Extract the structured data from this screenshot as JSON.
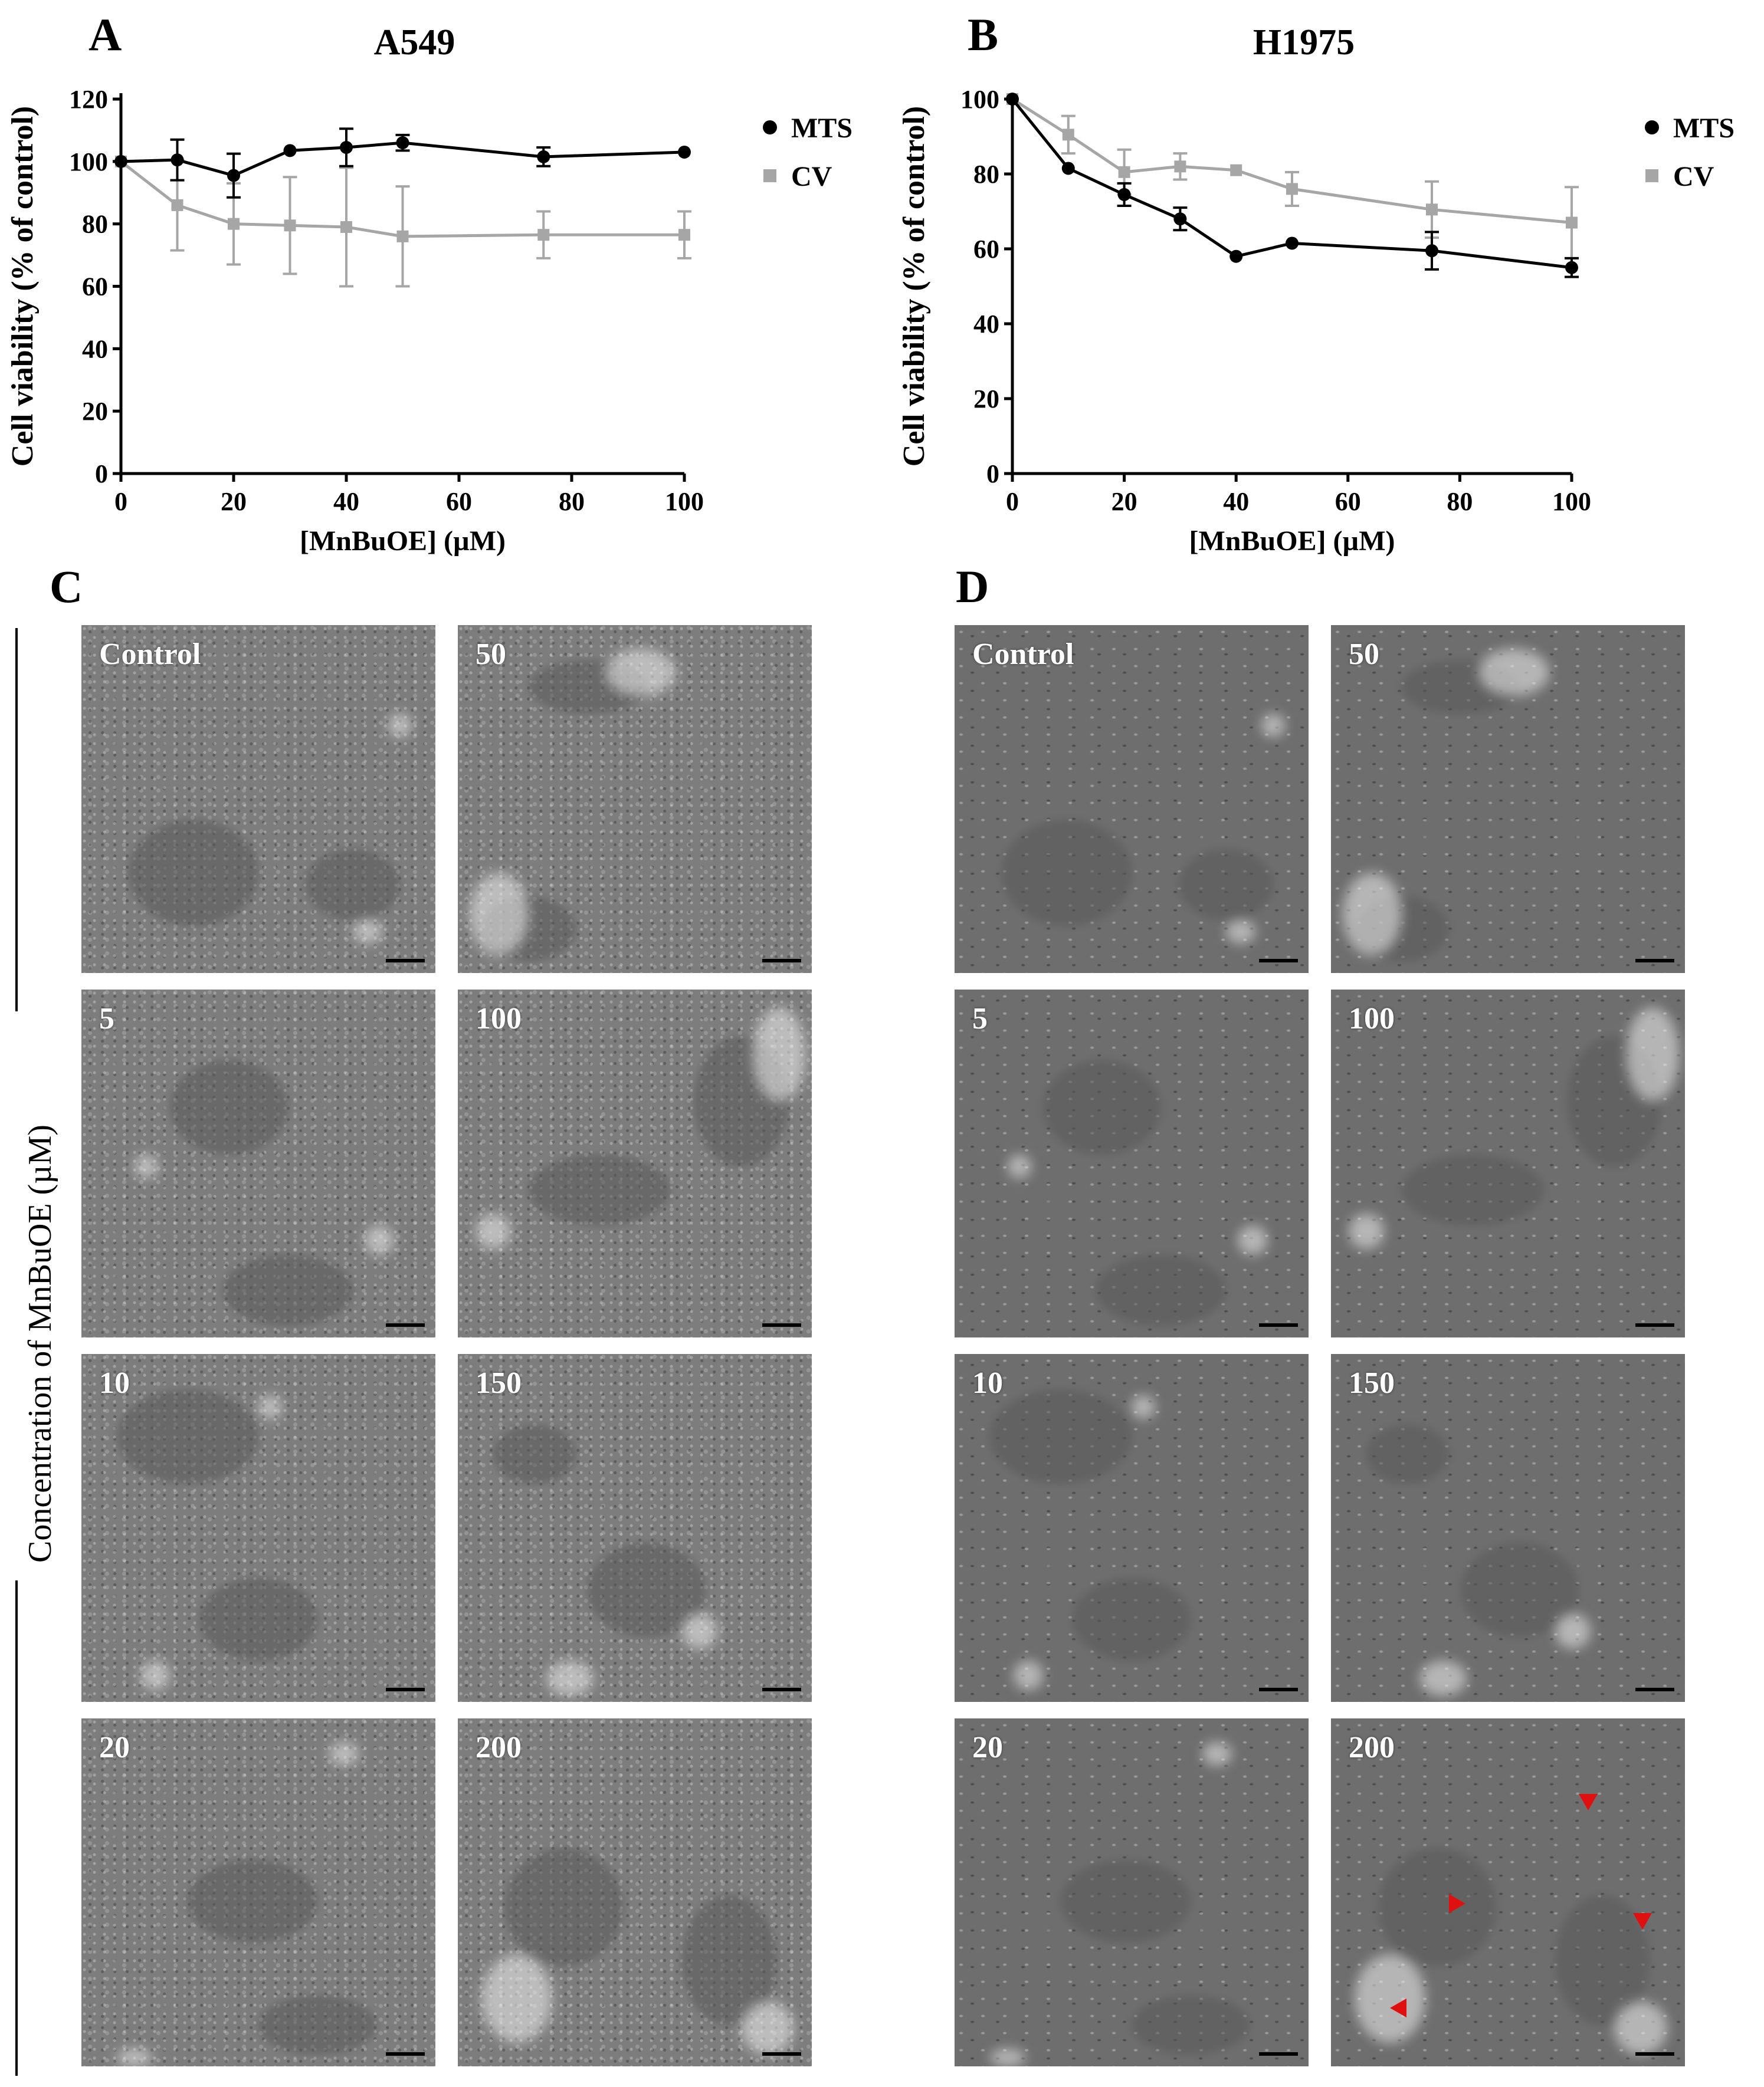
{
  "panels": {
    "a": "A",
    "b": "B",
    "c": "C",
    "d": "D"
  },
  "chart_data": [
    {
      "type": "line",
      "title": "A549",
      "xlabel": "[MnBuOE] (µM)",
      "ylabel": "Cell viability (% of control)",
      "xlim": [
        0,
        100
      ],
      "ylim": [
        0,
        120
      ],
      "x_ticks": [
        "0",
        "20",
        "40",
        "60",
        "80",
        "100"
      ],
      "y_ticks": [
        "0",
        "20",
        "40",
        "60",
        "80",
        "100",
        "120"
      ],
      "legend_position": "top-right",
      "series": [
        {
          "name": "MTS",
          "color": "#000000",
          "marker": "circle",
          "x": [
            0,
            10,
            20,
            30,
            40,
            50,
            75,
            100
          ],
          "values": [
            100,
            100.5,
            95.5,
            103.5,
            104.5,
            106,
            101.5,
            103
          ],
          "error": [
            0,
            6.5,
            7,
            0,
            6,
            2.5,
            3,
            0
          ]
        },
        {
          "name": "CV",
          "color": "#a6a6a6",
          "marker": "square",
          "x": [
            0,
            10,
            20,
            30,
            40,
            50,
            75,
            100
          ],
          "values": [
            100,
            86,
            80,
            79.5,
            79,
            76,
            76.5,
            76.5
          ],
          "error": [
            0,
            14.5,
            13,
            15.5,
            19,
            16,
            7.5,
            7.5
          ]
        }
      ]
    },
    {
      "type": "line",
      "title": "H1975",
      "xlabel": "[MnBuOE] (µM)",
      "ylabel": "Cell viability (% of control)",
      "xlim": [
        0,
        100
      ],
      "ylim": [
        0,
        100
      ],
      "x_ticks": [
        "0",
        "20",
        "40",
        "60",
        "80",
        "100"
      ],
      "y_ticks": [
        "0",
        "20",
        "40",
        "60",
        "80",
        "100"
      ],
      "legend_position": "top-right",
      "series": [
        {
          "name": "MTS",
          "color": "#000000",
          "marker": "circle",
          "x": [
            0,
            10,
            20,
            30,
            40,
            50,
            75,
            100
          ],
          "values": [
            100,
            81.5,
            74.5,
            68,
            58,
            61.5,
            59.5,
            55
          ],
          "error": [
            0,
            0,
            3,
            3,
            0,
            0,
            5,
            2.5
          ]
        },
        {
          "name": "CV",
          "color": "#a6a6a6",
          "marker": "square",
          "x": [
            0,
            10,
            20,
            30,
            40,
            50,
            75,
            100
          ],
          "values": [
            100,
            90.5,
            80.5,
            82,
            81,
            76,
            70.5,
            67
          ],
          "error": [
            0,
            5,
            6,
            3.5,
            0,
            4.5,
            7.5,
            9.5
          ]
        }
      ]
    }
  ],
  "micrographs": {
    "side_label": "Concentration of MnBuOE (µM)",
    "c": [
      {
        "label": "Control"
      },
      {
        "label": "50"
      },
      {
        "label": "5"
      },
      {
        "label": "100"
      },
      {
        "label": "10"
      },
      {
        "label": "150"
      },
      {
        "label": "20"
      },
      {
        "label": "200"
      }
    ],
    "d": [
      {
        "label": "Control"
      },
      {
        "label": "50"
      },
      {
        "label": "5"
      },
      {
        "label": "100"
      },
      {
        "label": "10"
      },
      {
        "label": "150"
      },
      {
        "label": "20"
      },
      {
        "label": "200"
      }
    ],
    "arrow_color": "#e01010"
  }
}
